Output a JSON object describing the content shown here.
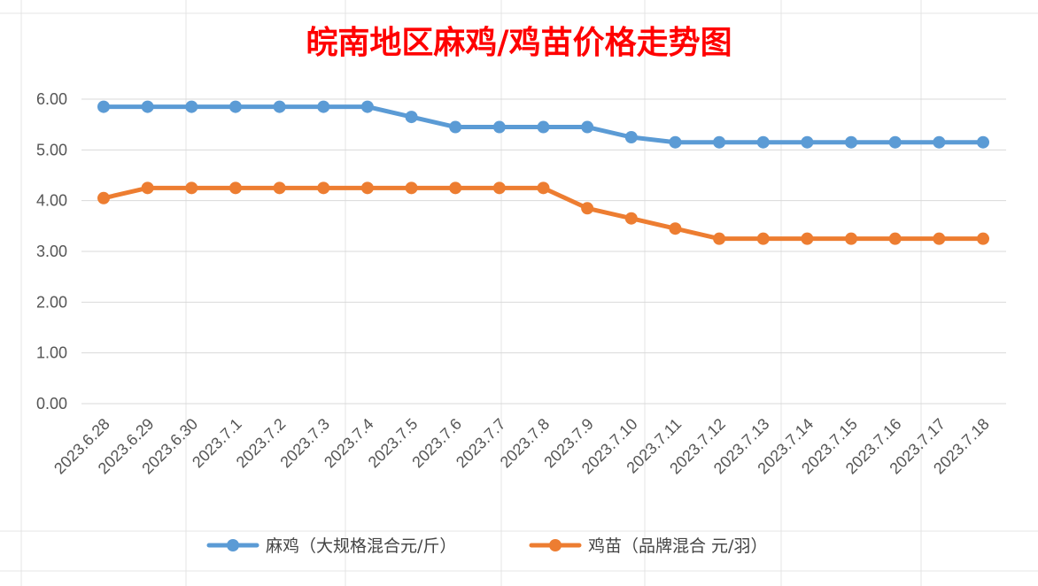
{
  "chart_data": {
    "type": "line",
    "title": "皖南地区麻鸡/鸡苗价格走势图",
    "categories": [
      "2023.6.28",
      "2023.6.29",
      "2023.6.30",
      "2023.7.1",
      "2023.7.2",
      "2023.7.3",
      "2023.7.4",
      "2023.7.5",
      "2023.7.6",
      "2023.7.7",
      "2023.7.8",
      "2023.7.9",
      "2023.7.10",
      "2023.7.11",
      "2023.7.12",
      "2023.7.13",
      "2023.7.14",
      "2023.7.15",
      "2023.7.16",
      "2023.7.17",
      "2023.7.18"
    ],
    "yticks": [
      "0.00",
      "1.00",
      "2.00",
      "3.00",
      "4.00",
      "5.00",
      "6.00"
    ],
    "ylim": [
      0,
      6
    ],
    "grid": true,
    "legend_position": "bottom",
    "series": [
      {
        "name": "麻鸡（大规格混合元/斤）",
        "color": "#5b9bd5",
        "values": [
          5.85,
          5.85,
          5.85,
          5.85,
          5.85,
          5.85,
          5.85,
          5.65,
          5.45,
          5.45,
          5.45,
          5.45,
          5.25,
          5.15,
          5.15,
          5.15,
          5.15,
          5.15,
          5.15,
          5.15,
          5.15
        ]
      },
      {
        "name": "鸡苗（品牌混合 元/羽）",
        "color": "#ed7d31",
        "values": [
          4.05,
          4.25,
          4.25,
          4.25,
          4.25,
          4.25,
          4.25,
          4.25,
          4.25,
          4.25,
          4.25,
          3.85,
          3.65,
          3.45,
          3.25,
          3.25,
          3.25,
          3.25,
          3.25,
          3.25,
          3.25
        ]
      }
    ]
  }
}
